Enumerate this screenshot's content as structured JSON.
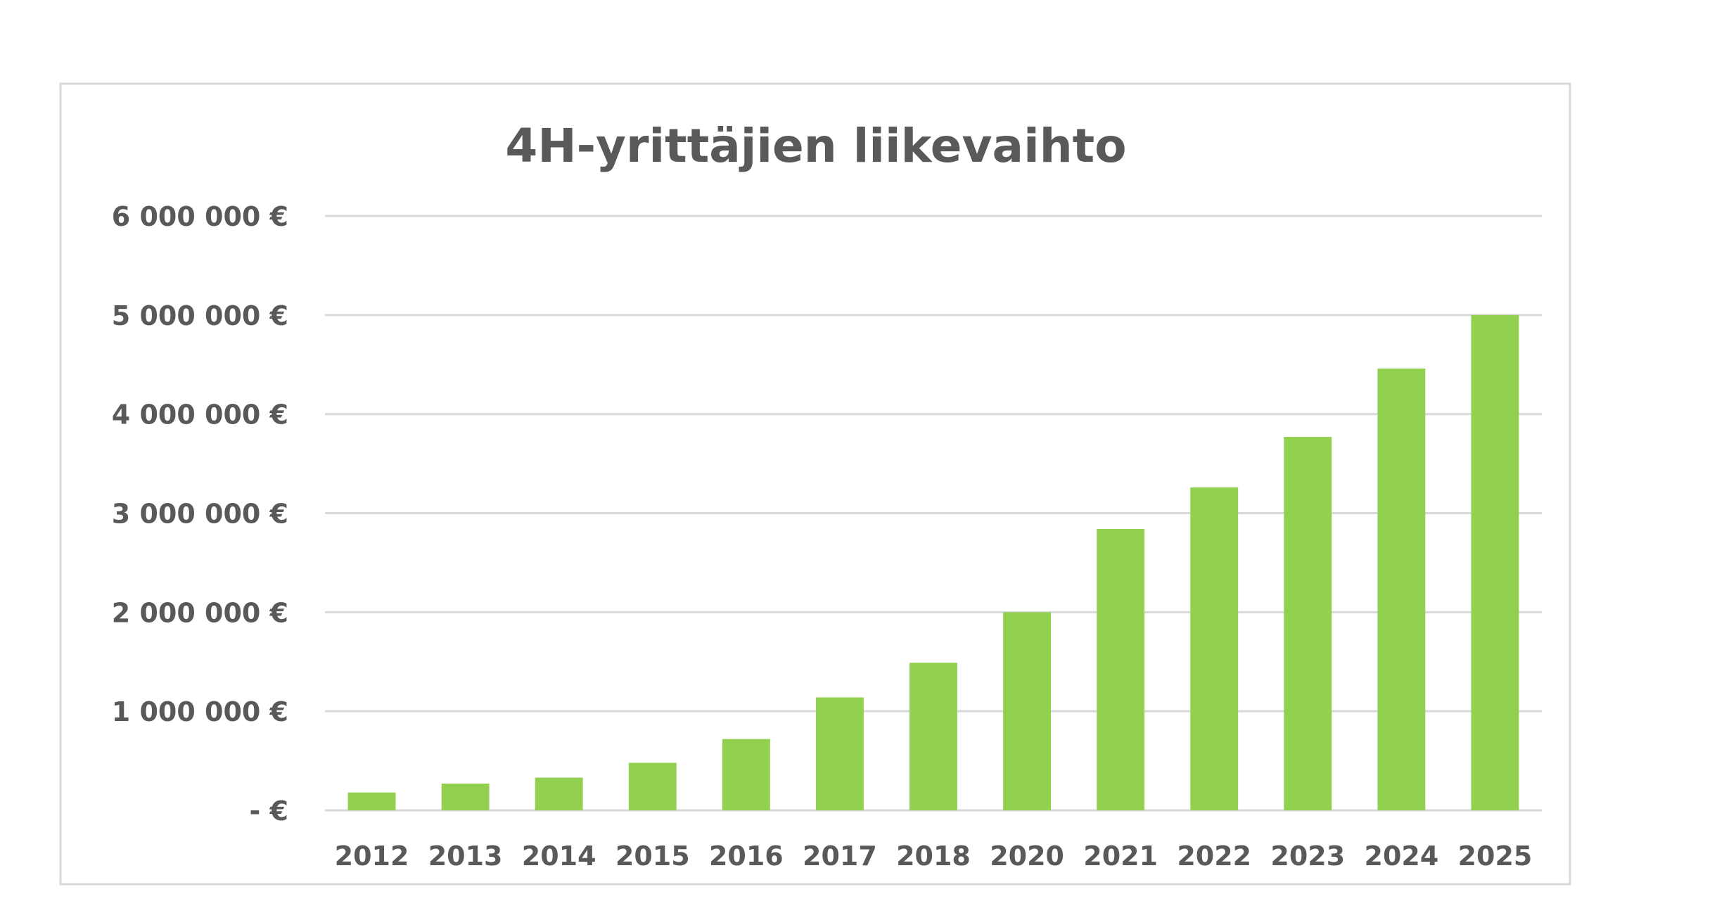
{
  "chart_data": {
    "type": "bar",
    "title": "4H-yrittäjien liikevaihto",
    "xlabel": "",
    "ylabel": "",
    "categories": [
      "2012",
      "2013",
      "2014",
      "2015",
      "2016",
      "2017",
      "2018",
      "2020",
      "2021",
      "2022",
      "2023",
      "2024",
      "2025"
    ],
    "series": [
      {
        "values": [
          180000,
          270000,
          330000,
          480000,
          720000,
          1140000,
          1490000,
          2000000,
          2840000,
          3260000,
          3770000,
          4460000,
          5000000
        ],
        "color": "#92d050"
      }
    ],
    "ylim": [
      0,
      6000000
    ],
    "y_ticks": [
      {
        "value": 0,
        "label": "- €"
      },
      {
        "value": 1000000,
        "label": "1 000 000 €"
      },
      {
        "value": 2000000,
        "label": "2 000 000 €"
      },
      {
        "value": 3000000,
        "label": "3 000 000 €"
      },
      {
        "value": 4000000,
        "label": "4 000 000 €"
      },
      {
        "value": 5000000,
        "label": "5 000 000 €"
      },
      {
        "value": 6000000,
        "label": "6 000 000 €"
      }
    ],
    "grid": true,
    "legend": "none",
    "colors": {
      "bar": "#92d050",
      "grid": "#d9d9d9",
      "text": "#595959",
      "border": "#d9d9d9"
    }
  }
}
